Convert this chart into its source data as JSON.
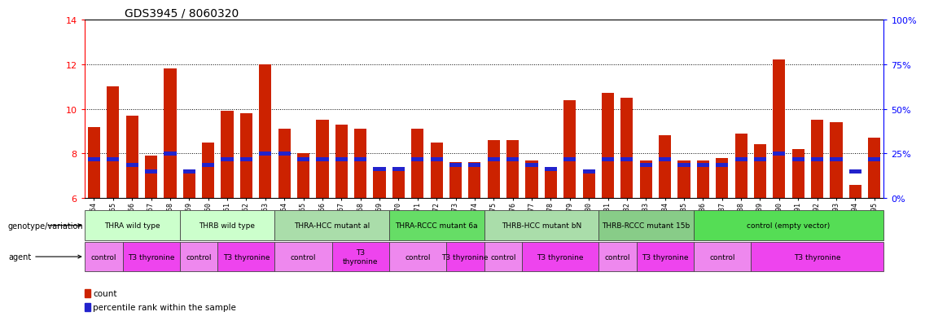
{
  "title": "GDS3945 / 8060320",
  "samples": [
    "GSM721654",
    "GSM721655",
    "GSM721656",
    "GSM721657",
    "GSM721658",
    "GSM721659",
    "GSM721660",
    "GSM721661",
    "GSM721662",
    "GSM721663",
    "GSM721664",
    "GSM721665",
    "GSM721666",
    "GSM721667",
    "GSM721668",
    "GSM721669",
    "GSM721670",
    "GSM721671",
    "GSM721672",
    "GSM721673",
    "GSM721674",
    "GSM721675",
    "GSM721676",
    "GSM721677",
    "GSM721678",
    "GSM721679",
    "GSM721680",
    "GSM721681",
    "GSM721682",
    "GSM721683",
    "GSM721684",
    "GSM721685",
    "GSM721686",
    "GSM721687",
    "GSM721688",
    "GSM721689",
    "GSM721690",
    "GSM721691",
    "GSM721692",
    "GSM721693",
    "GSM721694",
    "GSM721695"
  ],
  "counts": [
    9.2,
    11.0,
    9.7,
    7.9,
    11.8,
    7.1,
    8.5,
    9.9,
    9.8,
    12.0,
    9.1,
    8.0,
    9.5,
    9.3,
    9.1,
    7.3,
    7.3,
    9.1,
    8.5,
    7.6,
    7.6,
    8.6,
    8.6,
    7.7,
    7.4,
    10.4,
    7.3,
    10.7,
    10.5,
    7.7,
    8.8,
    7.7,
    7.7,
    7.8,
    8.9,
    8.4,
    12.2,
    8.2,
    9.5,
    9.4,
    6.6,
    8.7
  ],
  "percentile_ranks": [
    7.75,
    7.75,
    7.5,
    7.2,
    8.0,
    7.2,
    7.5,
    7.75,
    7.75,
    8.0,
    8.0,
    7.75,
    7.75,
    7.75,
    7.75,
    7.3,
    7.3,
    7.75,
    7.75,
    7.5,
    7.5,
    7.75,
    7.75,
    7.5,
    7.3,
    7.75,
    7.2,
    7.75,
    7.75,
    7.5,
    7.75,
    7.5,
    7.5,
    7.5,
    7.75,
    7.75,
    8.0,
    7.75,
    7.75,
    7.75,
    7.2,
    7.75
  ],
  "bar_base": 6.0,
  "ylim": [
    6.0,
    14.0
  ],
  "yticks": [
    6,
    8,
    10,
    12,
    14
  ],
  "gridlines": [
    8,
    10,
    12
  ],
  "genotype_groups": [
    {
      "label": "THRA wild type",
      "start": 0,
      "end": 4,
      "color": "#ccffcc"
    },
    {
      "label": "THRB wild type",
      "start": 5,
      "end": 9,
      "color": "#ccffcc"
    },
    {
      "label": "THRA-HCC mutant al",
      "start": 10,
      "end": 15,
      "color": "#aaddaa"
    },
    {
      "label": "THRA-RCCC mutant 6a",
      "start": 16,
      "end": 20,
      "color": "#66dd66"
    },
    {
      "label": "THRB-HCC mutant bN",
      "start": 21,
      "end": 26,
      "color": "#aaddaa"
    },
    {
      "label": "THRB-RCCC mutant 15b",
      "start": 27,
      "end": 31,
      "color": "#88cc88"
    },
    {
      "label": "control (empty vector)",
      "start": 32,
      "end": 41,
      "color": "#55dd55"
    }
  ],
  "agent_groups": [
    {
      "label": "control",
      "start": 0,
      "end": 1,
      "color": "#ee88ee"
    },
    {
      "label": "T3 thyronine",
      "start": 2,
      "end": 4,
      "color": "#ee44ee"
    },
    {
      "label": "control",
      "start": 5,
      "end": 6,
      "color": "#ee88ee"
    },
    {
      "label": "T3 thyronine",
      "start": 7,
      "end": 9,
      "color": "#ee44ee"
    },
    {
      "label": "control",
      "start": 10,
      "end": 12,
      "color": "#ee88ee"
    },
    {
      "label": "T3\nthyronine",
      "start": 13,
      "end": 15,
      "color": "#ee44ee"
    },
    {
      "label": "control",
      "start": 16,
      "end": 18,
      "color": "#ee88ee"
    },
    {
      "label": "T3 thyronine",
      "start": 19,
      "end": 20,
      "color": "#ee44ee"
    },
    {
      "label": "control",
      "start": 21,
      "end": 22,
      "color": "#ee88ee"
    },
    {
      "label": "T3 thyronine",
      "start": 23,
      "end": 26,
      "color": "#ee44ee"
    },
    {
      "label": "control",
      "start": 27,
      "end": 28,
      "color": "#ee88ee"
    },
    {
      "label": "T3 thyronine",
      "start": 29,
      "end": 31,
      "color": "#ee44ee"
    },
    {
      "label": "control",
      "start": 32,
      "end": 34,
      "color": "#ee88ee"
    },
    {
      "label": "T3 thyronine",
      "start": 35,
      "end": 41,
      "color": "#ee44ee"
    }
  ],
  "bar_color": "#cc2200",
  "percentile_color": "#2222cc",
  "title_fontsize": 10,
  "tick_fontsize": 6.0,
  "label_fontsize": 7.5
}
